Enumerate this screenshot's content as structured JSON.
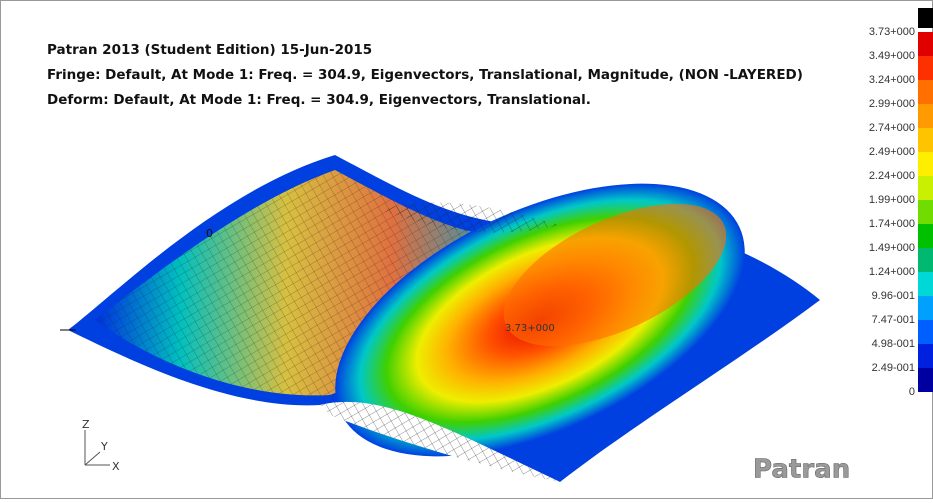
{
  "header": {
    "lines": [
      "Patran 2013 (Student Edition) 15-Jun-2015",
      "Fringe: Default, At Mode 1: Freq. = 304.9, Eigenvectors, Translational, Magnitude, (NON -LAYERED)",
      "Deform: Default, At Mode 1: Freq. = 304.9, Eigenvectors, Translational."
    ]
  },
  "legend": {
    "labels": [
      "3.73+000",
      "3.49+000",
      "3.24+000",
      "2.99+000",
      "2.74+000",
      "2.49+000",
      "2.24+000",
      "1.99+000",
      "1.74+000",
      "1.49+000",
      "1.24+000",
      "9.96-001",
      "7.47-001",
      "4.98-001",
      "2.49-001",
      "0"
    ],
    "colors": [
      "#e00000",
      "#ff3000",
      "#ff7000",
      "#ff9a00",
      "#ffc400",
      "#ffee00",
      "#c8f000",
      "#70dc00",
      "#00c000",
      "#00b870",
      "#00d8d8",
      "#00a0ff",
      "#0060ff",
      "#0020e0",
      "#0000a0"
    ]
  },
  "viewport": {
    "peak_label": "3.73+000",
    "node_label": "0"
  },
  "triad": {
    "z": "Z",
    "y": "Y",
    "x": "X"
  },
  "logo": "Patran"
}
